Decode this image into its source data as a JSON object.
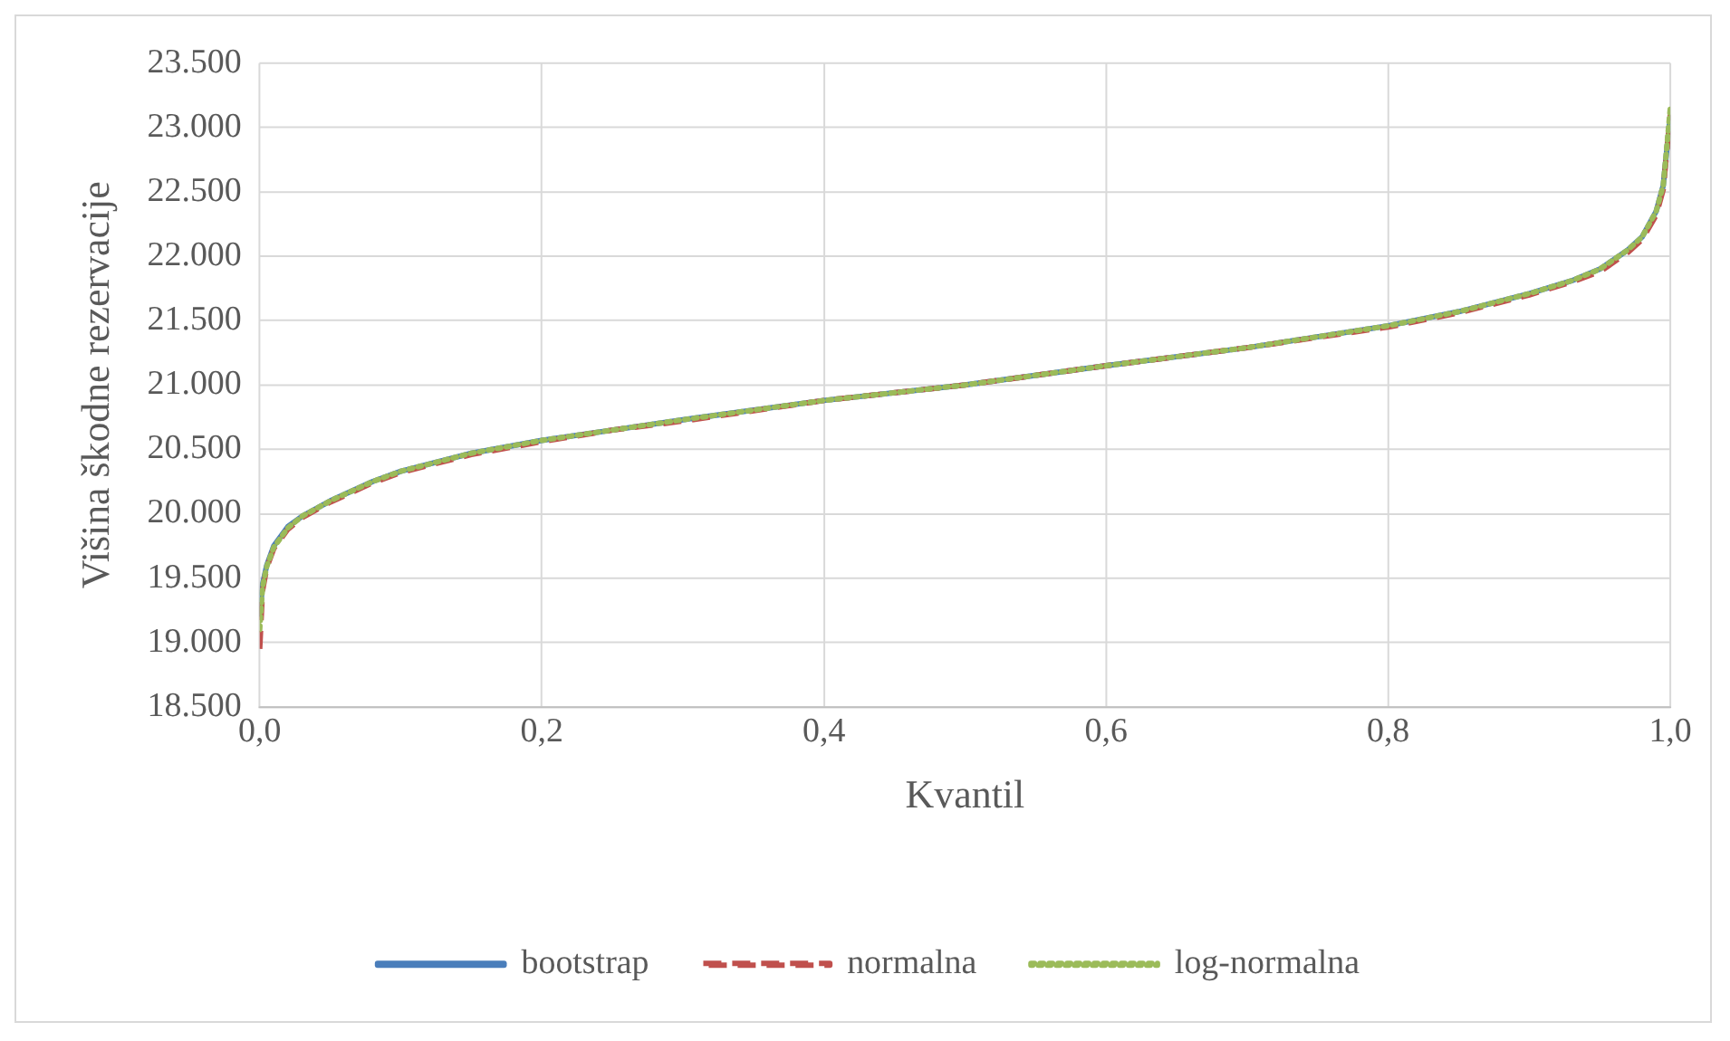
{
  "chart_data": {
    "type": "line",
    "xlabel": "Kvantil",
    "ylabel": "Višina škodne rezervacije",
    "x": [
      0,
      0.002,
      0.005,
      0.01,
      0.02,
      0.03,
      0.05,
      0.08,
      0.1,
      0.15,
      0.2,
      0.25,
      0.3,
      0.4,
      0.5,
      0.6,
      0.7,
      0.8,
      0.85,
      0.9,
      0.93,
      0.95,
      0.97,
      0.98,
      0.99,
      0.995,
      1.0
    ],
    "series": [
      {
        "name": "bootstrap",
        "color": "#4a7ebb",
        "line_style": "solid",
        "values": [
          19200,
          19450,
          19600,
          19750,
          19900,
          19980,
          20100,
          20250,
          20330,
          20470,
          20570,
          20650,
          20730,
          20880,
          21000,
          21150,
          21290,
          21460,
          21570,
          21710,
          21810,
          21900,
          22050,
          22150,
          22350,
          22550,
          23100
        ]
      },
      {
        "name": "normalna",
        "color": "#c0504d",
        "line_style": "dashed",
        "values": [
          18950,
          19400,
          19580,
          19730,
          19880,
          19970,
          20090,
          20240,
          20320,
          20460,
          20560,
          20650,
          20720,
          20880,
          21000,
          21150,
          21290,
          21450,
          21560,
          21700,
          21800,
          21880,
          22030,
          22130,
          22320,
          22520,
          23100
        ]
      },
      {
        "name": "log-normalna",
        "color": "#9bbb59",
        "line_style": "dotted",
        "values": [
          19100,
          19430,
          19590,
          19740,
          19890,
          19980,
          20100,
          20250,
          20330,
          20470,
          20570,
          20650,
          20730,
          20880,
          21000,
          21150,
          21290,
          21460,
          21570,
          21710,
          21810,
          21900,
          22050,
          22150,
          22350,
          22550,
          23150
        ]
      }
    ],
    "xlim": [
      0,
      1
    ],
    "xticks": [
      {
        "value": 0,
        "label": "0,0"
      },
      {
        "value": 0.2,
        "label": "0,2"
      },
      {
        "value": 0.4,
        "label": "0,4"
      },
      {
        "value": 0.6,
        "label": "0,6"
      },
      {
        "value": 0.8,
        "label": "0,8"
      },
      {
        "value": 1,
        "label": "1,0"
      }
    ],
    "ylim": [
      18500,
      23500
    ],
    "yticks": [
      {
        "value": 18500,
        "label": "18.500"
      },
      {
        "value": 19000,
        "label": "19.000"
      },
      {
        "value": 19500,
        "label": "19.500"
      },
      {
        "value": 20000,
        "label": "20.000"
      },
      {
        "value": 20500,
        "label": "20.500"
      },
      {
        "value": 21000,
        "label": "21.000"
      },
      {
        "value": 21500,
        "label": "21.500"
      },
      {
        "value": 22000,
        "label": "22.000"
      },
      {
        "value": 22500,
        "label": "22.500"
      },
      {
        "value": 23000,
        "label": "23.000"
      },
      {
        "value": 23500,
        "label": "23.500"
      }
    ],
    "grid": true,
    "legend": "bottom",
    "marker": "none"
  }
}
